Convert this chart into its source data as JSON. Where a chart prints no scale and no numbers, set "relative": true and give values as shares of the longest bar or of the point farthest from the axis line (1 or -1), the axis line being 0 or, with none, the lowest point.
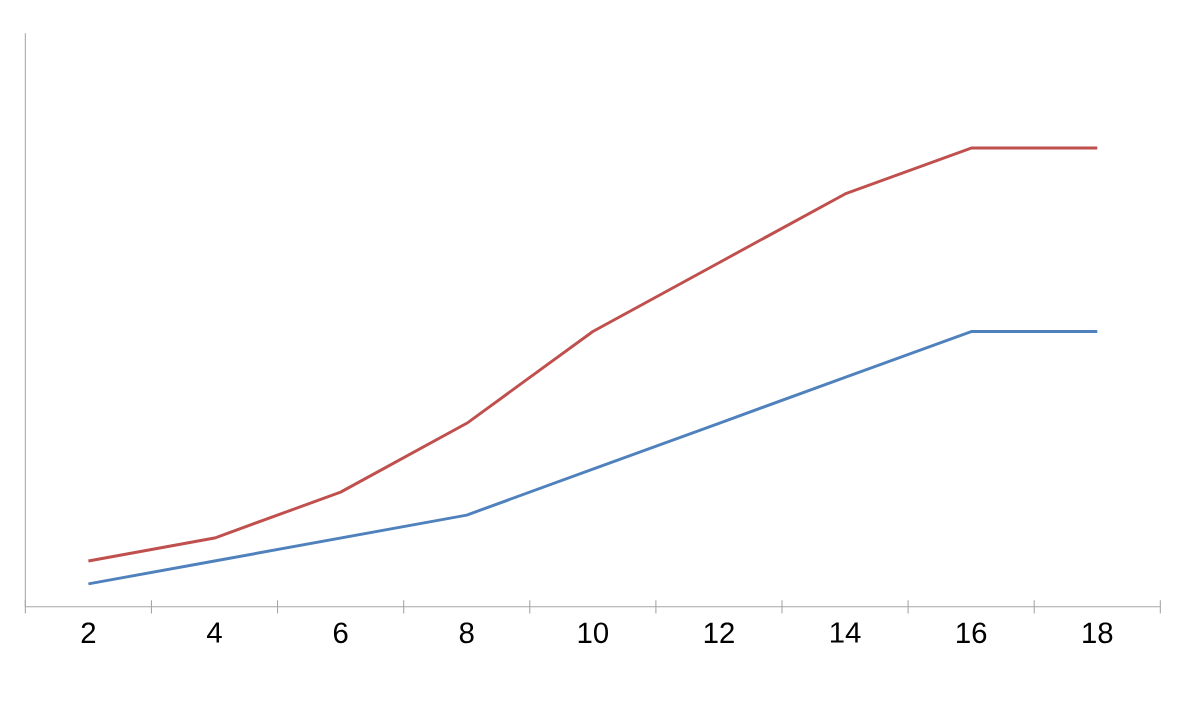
{
  "chart_data": {
    "type": "line",
    "relative": true,
    "categories": [
      "2",
      "4",
      "6",
      "8",
      "10",
      "12",
      "14",
      "16",
      "18"
    ],
    "series": [
      {
        "color": "#c0504d",
        "values": [
          0.1,
          0.15,
          0.25,
          0.4,
          0.6,
          0.75,
          0.9,
          1,
          1
        ]
      },
      {
        "color": "#4f81bd",
        "values": [
          0.05,
          0.1,
          0.15,
          0.2,
          0.3,
          0.4,
          0.5,
          0.6,
          0.6
        ]
      }
    ]
  }
}
